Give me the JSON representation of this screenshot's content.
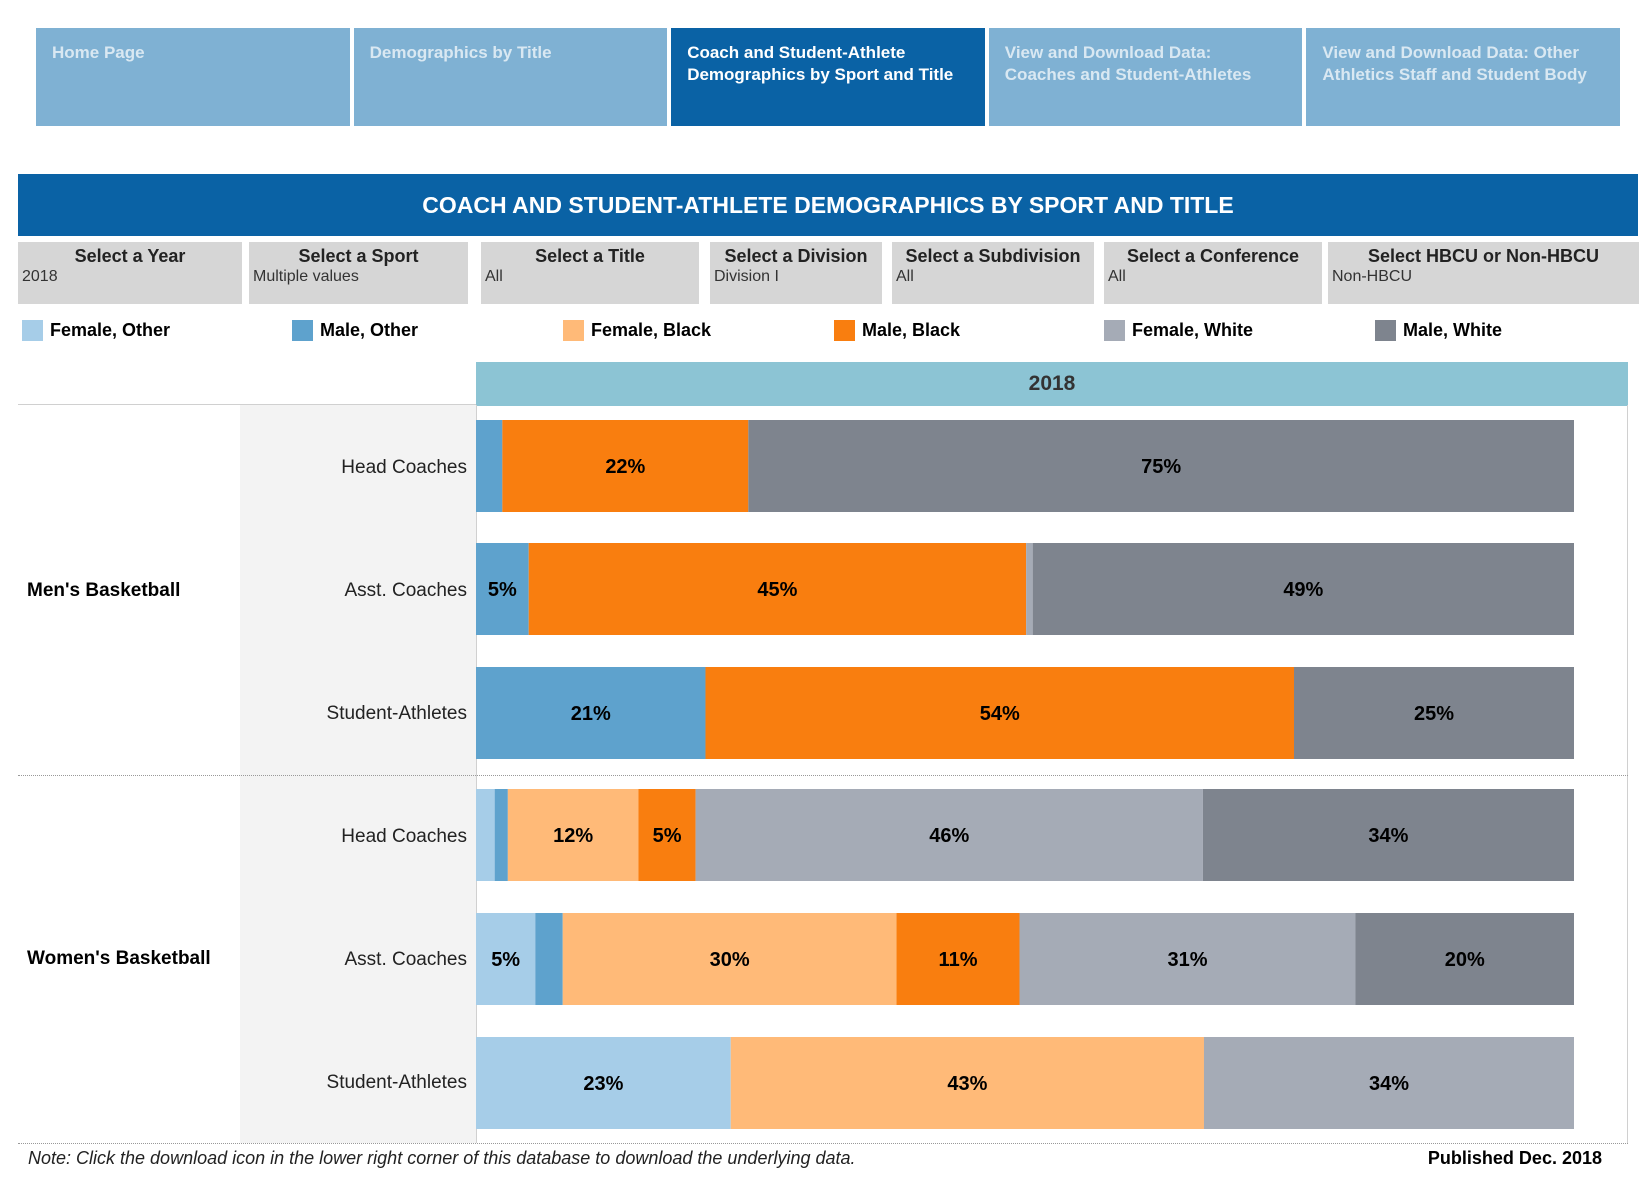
{
  "nav": {
    "tabs": [
      {
        "label": "Home Page"
      },
      {
        "label": "Demographics by Title"
      },
      {
        "label": "Coach and Student-Athlete Demographics by Sport and Title"
      },
      {
        "label": "View and Download Data: Coaches and Student-Athletes"
      },
      {
        "label": "View and Download Data: Other Athletics Staff and Student Body"
      }
    ]
  },
  "title": "COACH AND STUDENT-ATHLETE DEMOGRAPHICS BY SPORT AND TITLE",
  "filters": [
    {
      "label": "Select a Year",
      "value": "2018"
    },
    {
      "label": "Select a Sport",
      "value": "Multiple values"
    },
    {
      "label": "Select a Title",
      "value": "All"
    },
    {
      "label": "Select a Division",
      "value": "Division I"
    },
    {
      "label": "Select a Subdivision",
      "value": "All"
    },
    {
      "label": "Select a Conference",
      "value": "All"
    },
    {
      "label": "Select HBCU or Non-HBCU",
      "value": "Non-HBCU"
    }
  ],
  "legend": [
    {
      "label": "Female, Other",
      "color": "#a6cde8"
    },
    {
      "label": "Male, Other",
      "color": "#5ea2cd"
    },
    {
      "label": "Female, Black",
      "color": "#ffba78"
    },
    {
      "label": "Male, Black",
      "color": "#f97e0f"
    },
    {
      "label": "Female, White",
      "color": "#a5abb6"
    },
    {
      "label": "Male, White",
      "color": "#7e848e"
    }
  ],
  "chart_data": {
    "type": "bar",
    "orientation": "horizontal",
    "stacked": true,
    "normalized_to_percent": true,
    "column_header": "2018",
    "series": [
      "Female, Other",
      "Male, Other",
      "Female, Black",
      "Male, Black",
      "Female, White",
      "Male, White"
    ],
    "groups": [
      {
        "sport": "Men's Basketball",
        "rows": [
          {
            "title": "Head Coaches",
            "values": [
              0,
              2.4,
              0,
              22.4,
              0,
              75.2
            ],
            "labels": [
              "",
              "",
              "",
              "22%",
              "",
              "75%"
            ]
          },
          {
            "title": "Asst. Coaches",
            "values": [
              0,
              4.8,
              0,
              45.3,
              0.6,
              49.3
            ],
            "labels": [
              "",
              "5%",
              "",
              "45%",
              "",
              "49%"
            ]
          },
          {
            "title": "Student-Athletes",
            "values": [
              0,
              20.9,
              0,
              53.6,
              0,
              25.5
            ],
            "labels": [
              "",
              "21%",
              "",
              "54%",
              "",
              "25%"
            ]
          }
        ]
      },
      {
        "sport": "Women's Basketball",
        "rows": [
          {
            "title": "Head Coaches",
            "values": [
              1.7,
              1.2,
              11.9,
              5.2,
              46.2,
              33.8
            ],
            "labels": [
              "",
              "",
              "12%",
              "5%",
              "46%",
              "34%"
            ]
          },
          {
            "title": "Asst. Coaches",
            "values": [
              5.4,
              2.5,
              30.4,
              11.2,
              30.6,
              19.9
            ],
            "labels": [
              "5%",
              "",
              "30%",
              "11%",
              "31%",
              "20%"
            ]
          },
          {
            "title": "Student-Athletes",
            "values": [
              23.2,
              0,
              43.1,
              0,
              33.7,
              0
            ],
            "labels": [
              "23%",
              "",
              "43%",
              "",
              "34%",
              ""
            ]
          }
        ]
      }
    ]
  },
  "footer": {
    "note": "Note: Click the download icon in the lower right corner of this database to download the underlying data.",
    "published": "Published Dec. 2018"
  }
}
